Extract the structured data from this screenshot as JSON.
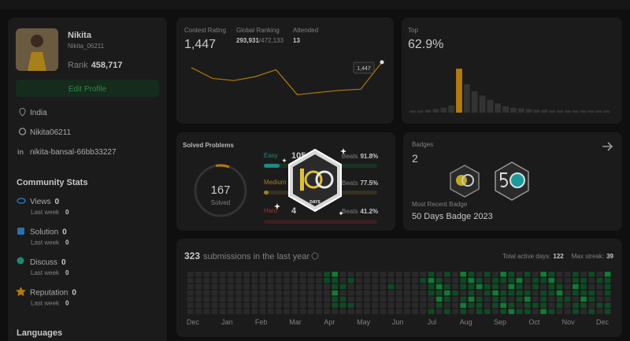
{
  "profile": {
    "name": "Nikita",
    "username": "Nikita_06211",
    "rank_label": "Rank",
    "rank": "458,717",
    "edit_button": "Edit Profile",
    "location": "India",
    "github": "Nikita06211",
    "linkedin": "nikita-bansal-66bb33227"
  },
  "community_stats": {
    "title": "Community Stats",
    "items": [
      {
        "label": "Views",
        "value": 0,
        "sub_label": "Last week",
        "sub_value": 0
      },
      {
        "label": "Solution",
        "value": 0,
        "sub_label": "Last week",
        "sub_value": 0
      },
      {
        "label": "Discuss",
        "value": 0,
        "sub_label": "Last week",
        "sub_value": 0
      },
      {
        "label": "Reputation",
        "value": 0,
        "sub_label": "Last week",
        "sub_value": 0
      }
    ]
  },
  "languages_title": "Languages",
  "contest": {
    "rating_label": "Contest Rating",
    "rating": "1,447",
    "ranking_label": "Global Ranking",
    "ranking": "293,931",
    "ranking_total": "/472,133",
    "attended_label": "Attended",
    "attended": 13,
    "chart": {
      "type": "line",
      "values": [
        1437,
        1417,
        1413,
        1420,
        1433,
        1387,
        1391,
        1395,
        1397,
        1447
      ],
      "ylim": [
        1380,
        1460
      ],
      "color": "#b07a10",
      "tooltip": "1,447"
    }
  },
  "top": {
    "label": "Top",
    "value": "62.9%",
    "chart": {
      "type": "bar",
      "values": [
        3,
        3,
        4,
        5,
        7,
        10,
        62,
        40,
        30,
        24,
        18,
        13,
        9,
        7,
        6,
        5,
        4,
        4,
        3,
        3,
        3,
        3,
        3,
        3,
        3,
        3
      ],
      "ylim": [
        0,
        70
      ],
      "color": "#333333",
      "highlight_color": "#b07a10",
      "highlight_index": 6
    }
  },
  "solved": {
    "title": "Solved Problems",
    "total": 167,
    "total_label": "Solved",
    "difficulties": [
      {
        "name": "Easy",
        "solved": 105,
        "beats_label": "Beats",
        "beats": "91.8%"
      },
      {
        "name": "Medium",
        "beats_label": "Beats",
        "beats": "77.5%"
      },
      {
        "name": "Hard",
        "solved": 4,
        "beats_label": "Beats",
        "beats": "41.2%"
      }
    ]
  },
  "overlay_badge": {
    "label": "DAYS"
  },
  "badges": {
    "title": "Badges",
    "count": 2,
    "recent_label": "Most Recent Badge",
    "recent_name": "50 Days Badge 2023"
  },
  "submissions": {
    "count": 323,
    "label": "submissions in the last year",
    "active_label": "Total active days:",
    "active": 122,
    "streak_label": "Max streak:",
    "streak": 39,
    "months": [
      "Dec",
      "Jan",
      "Feb",
      "Mar",
      "Apr",
      "May",
      "Jun",
      "Jul",
      "Aug",
      "Sep",
      "Oct",
      "Nov",
      "Dec"
    ],
    "weeks": [
      [
        0,
        0,
        0,
        0,
        0,
        0,
        0
      ],
      [
        0,
        0,
        0,
        0,
        0,
        0,
        0
      ],
      [
        0,
        0,
        0,
        0,
        0,
        0,
        0
      ],
      [
        0,
        0,
        0,
        0,
        0,
        0,
        0
      ],
      [
        0,
        0,
        0,
        0,
        0,
        0,
        0
      ],
      [
        0,
        0,
        0,
        0,
        0,
        0,
        0
      ],
      [
        0,
        0,
        0,
        0,
        0,
        0,
        0
      ],
      [
        0,
        0,
        0,
        0,
        0,
        0,
        0
      ],
      [
        0,
        0,
        0,
        0,
        0,
        0,
        0
      ],
      [
        0,
        0,
        0,
        0,
        0,
        0,
        0
      ],
      [
        0,
        0,
        0,
        0,
        0,
        0,
        0
      ],
      [
        0,
        0,
        0,
        0,
        0,
        0,
        0
      ],
      [
        0,
        0,
        0,
        0,
        0,
        0,
        0
      ],
      [
        0,
        0,
        0,
        0,
        0,
        0,
        0
      ],
      [
        0,
        0,
        0,
        0,
        0,
        0,
        0
      ],
      [
        0,
        0,
        0,
        0,
        0,
        0,
        0
      ],
      [
        0,
        0,
        0,
        0,
        0,
        0,
        0
      ],
      [
        1,
        1,
        0,
        0,
        0,
        0,
        0
      ],
      [
        2,
        1,
        1,
        2,
        1,
        1,
        0
      ],
      [
        0,
        0,
        1,
        0,
        1,
        1,
        0
      ],
      [
        0,
        1,
        0,
        0,
        0,
        1,
        0
      ],
      [
        0,
        0,
        0,
        0,
        0,
        0,
        0
      ],
      [
        0,
        0,
        0,
        0,
        0,
        0,
        0
      ],
      [
        0,
        0,
        0,
        0,
        0,
        0,
        0
      ],
      [
        0,
        0,
        0,
        0,
        0,
        0,
        0
      ],
      [
        0,
        0,
        1,
        0,
        0,
        0,
        0
      ],
      [
        0,
        0,
        0,
        0,
        0,
        0,
        0
      ],
      [
        0,
        0,
        0,
        0,
        0,
        0,
        0
      ],
      [
        0,
        0,
        0,
        0,
        0,
        0,
        0
      ],
      [
        0,
        1,
        0,
        0,
        0,
        0,
        0
      ],
      [
        1,
        2,
        1,
        1,
        0,
        0,
        1
      ],
      [
        0,
        1,
        2,
        1,
        2,
        1,
        0
      ],
      [
        1,
        0,
        1,
        2,
        1,
        0,
        1
      ],
      [
        0,
        0,
        0,
        1,
        0,
        0,
        0
      ],
      [
        2,
        1,
        1,
        0,
        1,
        2,
        1
      ],
      [
        1,
        2,
        1,
        1,
        2,
        1,
        0
      ],
      [
        0,
        1,
        2,
        0,
        1,
        1,
        1
      ],
      [
        1,
        0,
        1,
        1,
        0,
        0,
        1
      ],
      [
        0,
        1,
        1,
        2,
        1,
        1,
        0
      ],
      [
        2,
        1,
        0,
        1,
        1,
        2,
        1
      ],
      [
        1,
        1,
        2,
        1,
        0,
        1,
        2
      ],
      [
        0,
        2,
        1,
        1,
        1,
        0,
        1
      ],
      [
        1,
        0,
        0,
        1,
        2,
        1,
        1
      ],
      [
        0,
        1,
        1,
        0,
        0,
        1,
        0
      ],
      [
        2,
        1,
        0,
        1,
        1,
        1,
        2
      ],
      [
        1,
        2,
        1,
        1,
        0,
        0,
        1
      ],
      [
        0,
        0,
        1,
        2,
        1,
        1,
        0
      ],
      [
        0,
        0,
        0,
        0,
        1,
        0,
        0
      ],
      [
        1,
        1,
        2,
        1,
        0,
        1,
        1
      ],
      [
        0,
        1,
        1,
        1,
        2,
        1,
        0
      ],
      [
        1,
        0,
        0,
        1,
        1,
        0,
        1
      ],
      [
        0,
        1,
        0,
        0,
        0,
        1,
        0
      ],
      [
        2,
        1,
        1,
        1,
        0,
        1,
        1
      ]
    ],
    "level_colors": [
      "#2a2a2a",
      "#0f4a25",
      "#127a35"
    ]
  }
}
